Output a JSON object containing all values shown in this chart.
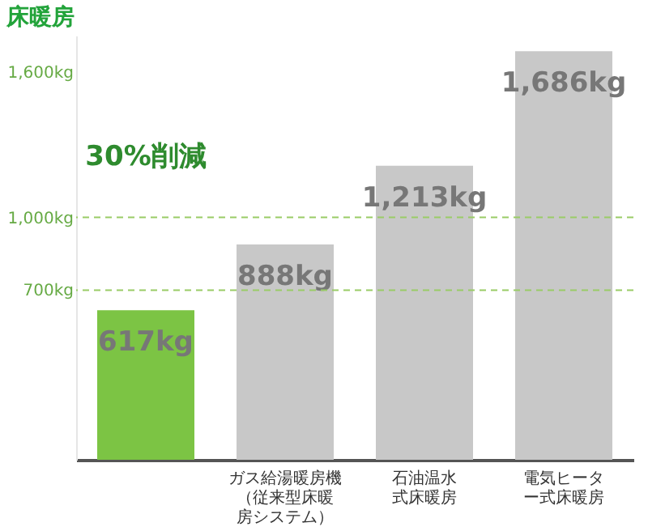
{
  "chart_data": {
    "type": "bar",
    "title": "床暖房",
    "categories": [
      null,
      "ガス給湯暖房機（従来型床暖房システム）",
      "石油温水式床暖房",
      "電気ヒーター式床暖房"
    ],
    "values": [
      617,
      888,
      1213,
      1686
    ],
    "colors": [
      "#7cc444",
      "#c8c8c8",
      "#c8c8c8",
      "#c8c8c8"
    ],
    "value_labels": [
      "617kg",
      "888kg",
      "1,213kg",
      "1,686kg"
    ],
    "ylim": [
      0,
      1750
    ],
    "yticks": [
      {
        "value": 700,
        "label": "700kg"
      },
      {
        "value": 1000,
        "label": "1,000kg"
      },
      {
        "value": 1600,
        "label": "1,600kg"
      }
    ],
    "ref_lines": [
      {
        "axis": "y",
        "value": 700,
        "label": null,
        "color": "#99cc66",
        "line_style": "dashed"
      },
      {
        "axis": "y",
        "value": 1000,
        "label": null,
        "color": "#99cc66",
        "line_style": "dashed"
      }
    ],
    "annotations": [
      "30%削減"
    ],
    "grid": false
  }
}
